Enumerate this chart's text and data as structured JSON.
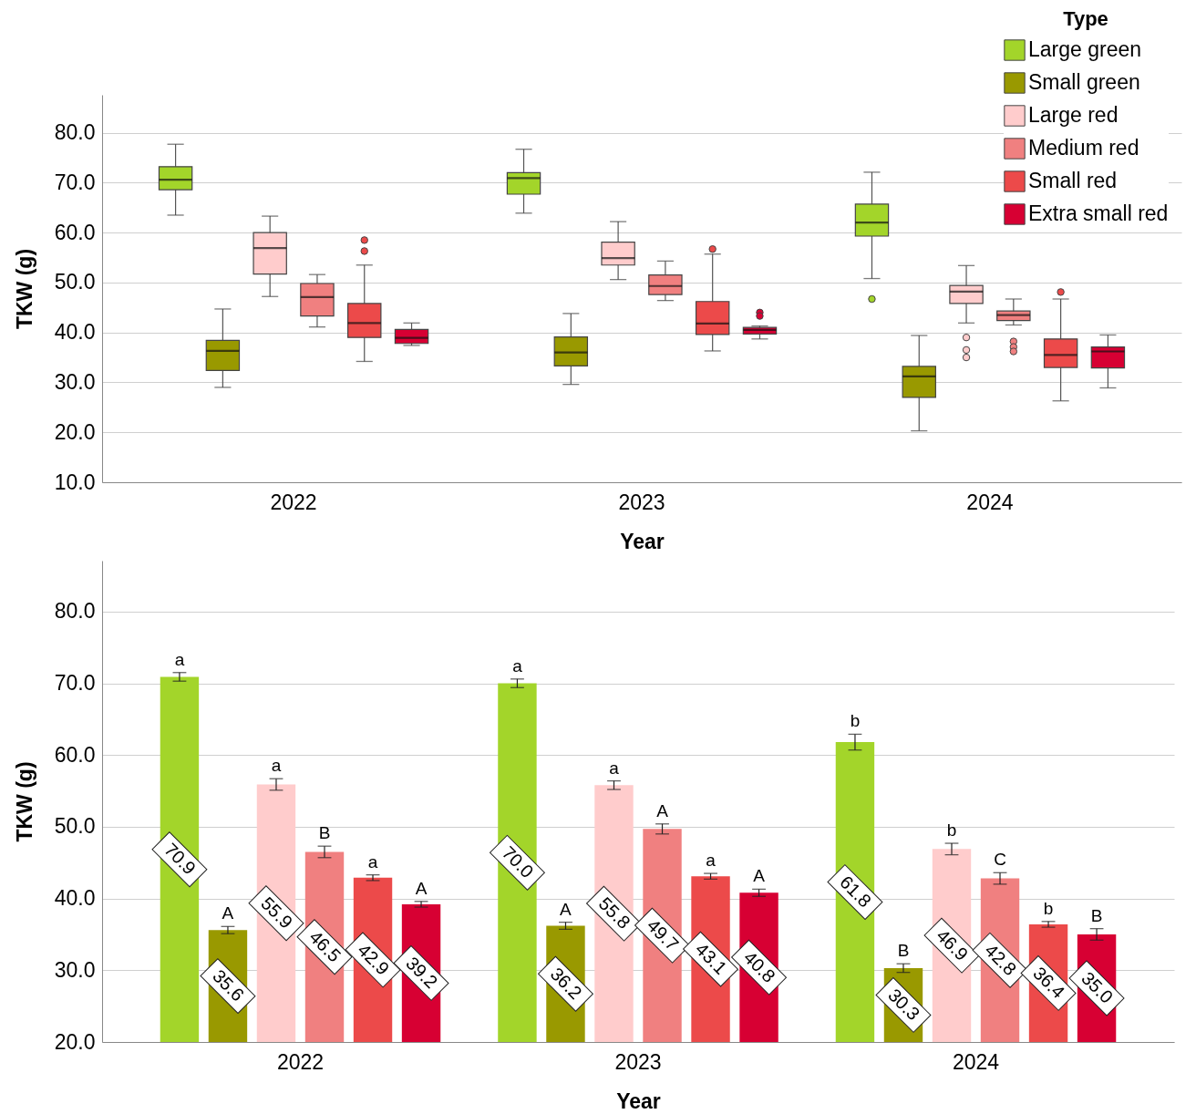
{
  "chart_data": [
    {
      "type": "box",
      "xlabel": "Year",
      "ylabel": "TKW (g)",
      "legend_title": "Type",
      "legend": "top right",
      "grid": "y",
      "categories": [
        "2022",
        "2023",
        "2024"
      ],
      "ylim": [
        10,
        87.6
      ],
      "yticks": [
        {
          "value": 10,
          "label": "10.0"
        },
        {
          "value": 20,
          "label": "20.0"
        },
        {
          "value": 30,
          "label": "30.0"
        },
        {
          "value": 40,
          "label": "40.0"
        },
        {
          "value": 50,
          "label": "50.0"
        },
        {
          "value": 60,
          "label": "60.0"
        },
        {
          "value": 70,
          "label": "70.0"
        },
        {
          "value": 80,
          "label": "80.0"
        }
      ],
      "series": [
        {
          "name": "Large green",
          "color": "#a3d52a",
          "boxes": [
            {
              "low": 63.5,
              "q1": 68.6,
              "median": 70.6,
              "q3": 73.2,
              "high": 77.7
            },
            {
              "low": 63.9,
              "q1": 67.7,
              "median": 70.9,
              "q3": 72.0,
              "high": 76.7
            },
            {
              "low": 50.8,
              "q1": 59.3,
              "median": 62.0,
              "q3": 65.7,
              "high": 72.1,
              "outliers": [
                46.7
              ]
            }
          ]
        },
        {
          "name": "Small green",
          "color": "#999900",
          "boxes": [
            {
              "low": 29.0,
              "q1": 32.4,
              "median": 36.3,
              "q3": 38.4,
              "high": 44.7
            },
            {
              "low": 29.6,
              "q1": 33.3,
              "median": 36.0,
              "q3": 39.1,
              "high": 43.8
            },
            {
              "low": 20.3,
              "q1": 27.0,
              "median": 31.2,
              "q3": 33.2,
              "high": 39.4
            }
          ]
        },
        {
          "name": "Large red",
          "color": "#ffcccc",
          "boxes": [
            {
              "low": 47.2,
              "q1": 51.7,
              "median": 56.9,
              "q3": 60.0,
              "high": 63.3
            },
            {
              "low": 50.6,
              "q1": 53.5,
              "median": 54.9,
              "q3": 58.1,
              "high": 62.2
            },
            {
              "low": 41.9,
              "q1": 45.8,
              "median": 48.2,
              "q3": 49.4,
              "high": 53.4,
              "outliers": [
                39.0,
                36.5,
                35.0
              ]
            }
          ]
        },
        {
          "name": "Medium red",
          "color": "#f08080",
          "boxes": [
            {
              "low": 41.1,
              "q1": 43.3,
              "median": 47.1,
              "q3": 49.8,
              "high": 51.6
            },
            {
              "low": 46.4,
              "q1": 47.6,
              "median": 49.3,
              "q3": 51.5,
              "high": 54.3
            },
            {
              "low": 41.5,
              "q1": 42.4,
              "median": 43.5,
              "q3": 44.3,
              "high": 46.7,
              "outliers": [
                38.2,
                37.1,
                36.2
              ]
            }
          ]
        },
        {
          "name": "Small red",
          "color": "#ec4a4a",
          "boxes": [
            {
              "low": 34.2,
              "q1": 39.0,
              "median": 41.9,
              "q3": 45.8,
              "high": 53.5,
              "outliers": [
                58.5,
                56.3
              ]
            },
            {
              "low": 36.3,
              "q1": 39.6,
              "median": 41.8,
              "q3": 46.2,
              "high": 55.7,
              "outliers": [
                56.7
              ]
            },
            {
              "low": 26.3,
              "q1": 33.0,
              "median": 35.5,
              "q3": 38.7,
              "high": 46.7,
              "outliers": [
                48.1
              ]
            }
          ]
        },
        {
          "name": "Extra small red",
          "color": "#d70033",
          "boxes": [
            {
              "low": 37.4,
              "q1": 37.8,
              "median": 38.9,
              "q3": 40.6,
              "high": 41.9
            },
            {
              "low": 38.7,
              "q1": 39.7,
              "median": 40.5,
              "q3": 41.0,
              "high": 41.3,
              "outliers": [
                44.0,
                43.3
              ]
            },
            {
              "low": 28.9,
              "q1": 32.9,
              "median": 36.2,
              "q3": 37.1,
              "high": 39.5
            }
          ]
        }
      ]
    },
    {
      "type": "bar",
      "xlabel": "Year",
      "ylabel": "TKW (g)",
      "grid": "y",
      "categories": [
        "2022",
        "2023",
        "2024"
      ],
      "ylim": [
        20,
        87.1
      ],
      "yticks": [
        {
          "value": 20,
          "label": "20.0"
        },
        {
          "value": 30,
          "label": "30.0"
        },
        {
          "value": 40,
          "label": "40.0"
        },
        {
          "value": 50,
          "label": "50.0"
        },
        {
          "value": 60,
          "label": "60.0"
        },
        {
          "value": 70,
          "label": "70.0"
        },
        {
          "value": 80,
          "label": "80.0"
        }
      ],
      "series": [
        {
          "color": "#a3d52a",
          "values": [
            70.9,
            70.0,
            61.8
          ],
          "value_labels": [
            "70.9",
            "70.0",
            "61.8"
          ],
          "errors": [
            0.6,
            0.6,
            1.1
          ]
        },
        {
          "color": "#999900",
          "values": [
            35.6,
            36.2,
            30.3
          ],
          "value_labels": [
            "35.6",
            "36.2",
            "30.3"
          ],
          "errors": [
            0.5,
            0.5,
            0.6
          ]
        },
        {
          "color": "#ffcccc",
          "values": [
            55.9,
            55.8,
            46.9
          ],
          "value_labels": [
            "55.9",
            "55.8",
            "46.9"
          ],
          "errors": [
            0.8,
            0.6,
            0.8
          ]
        },
        {
          "color": "#f08080",
          "values": [
            46.5,
            49.7,
            42.8
          ],
          "value_labels": [
            "46.5",
            "49.7",
            "42.8"
          ],
          "errors": [
            0.8,
            0.7,
            0.8
          ]
        },
        {
          "color": "#ec4a4a",
          "values": [
            42.9,
            43.1,
            36.4
          ],
          "value_labels": [
            "42.9",
            "43.1",
            "36.4"
          ],
          "errors": [
            0.4,
            0.4,
            0.4
          ]
        },
        {
          "color": "#d70033",
          "values": [
            39.2,
            40.8,
            35.0
          ],
          "value_labels": [
            "39.2",
            "40.8",
            "35.0"
          ],
          "errors": [
            0.4,
            0.5,
            0.8
          ]
        }
      ],
      "annotations": [
        "a",
        "A",
        "a",
        "B",
        "a",
        "A",
        "a",
        "A",
        "a",
        "A",
        "a",
        "A",
        "b",
        "B",
        "b",
        "C",
        "b",
        "B"
      ]
    }
  ]
}
